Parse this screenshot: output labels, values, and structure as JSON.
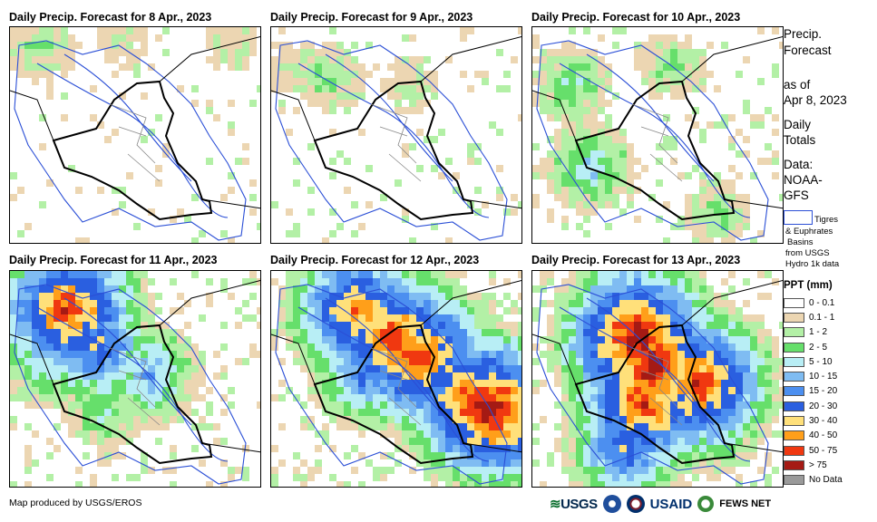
{
  "panels": [
    {
      "title": "Daily Precip. Forecast for 8 Apr., 2023",
      "intensity": 0
    },
    {
      "title": "Daily Precip. Forecast for 9 Apr., 2023",
      "intensity": 1
    },
    {
      "title": "Daily Precip. Forecast for 10 Apr., 2023",
      "intensity": 2
    },
    {
      "title": "Daily Precip. Forecast for 11 Apr., 2023",
      "intensity": 3
    },
    {
      "title": "Daily Precip. Forecast for 12 Apr., 2023",
      "intensity": 5
    },
    {
      "title": "Daily Precip. Forecast for 13 Apr., 2023",
      "intensity": 4
    }
  ],
  "side": {
    "title_line1": "Precip.",
    "title_line2": "Forecast",
    "asof_line1": "as of",
    "asof_line2": "Apr 8, 2023",
    "totals_line1": "Daily",
    "totals_line2": "Totals",
    "data_line1": "Data:",
    "data_line2": "NOAA-",
    "data_line3": "GFS"
  },
  "basins": {
    "line1": "Tigres",
    "line2": "& Euphrates",
    "line3": "Basins",
    "line4": "from USGS",
    "line5": "Hydro 1k data"
  },
  "legend": {
    "title": "PPT (mm)",
    "items": [
      {
        "label": "0 - 0.1",
        "color": "#ffffff"
      },
      {
        "label": "0.1 - 1",
        "color": "#ecd6b2"
      },
      {
        "label": "1 - 2",
        "color": "#b3f0a6"
      },
      {
        "label": "2 - 5",
        "color": "#66df6b"
      },
      {
        "label": "5 - 10",
        "color": "#b8eef5"
      },
      {
        "label": "10 - 15",
        "color": "#7fbcf2"
      },
      {
        "label": "15 - 20",
        "color": "#4c8ff0"
      },
      {
        "label": "20 - 30",
        "color": "#2a5fe0"
      },
      {
        "label": "30 - 40",
        "color": "#ffe07a"
      },
      {
        "label": "40 - 50",
        "color": "#ff9f1a"
      },
      {
        "label": "50 - 75",
        "color": "#f03810"
      },
      {
        "label": "> 75",
        "color": "#a51a14"
      },
      {
        "label": "No Data",
        "color": "#9a9a9a"
      }
    ]
  },
  "credit": "Map produced by USGS/EROS",
  "logos": {
    "usgs": "USGS",
    "usaid": "USAID",
    "fews": "FEWS NET"
  }
}
